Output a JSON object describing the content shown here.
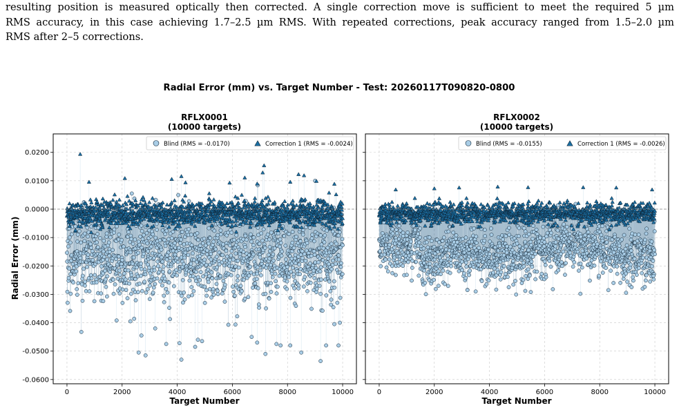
{
  "paragraph": {
    "lines": [
      "resulting position is measured optically then corrected.  A single correction move is sufficient to meet the required 5 µm",
      "RMS accuracy, in this case achieving 1.7–2.5 µm RMS. With repeated corrections, peak accuracy ranged from 1.5–2.0 µm",
      "RMS after 2–5 corrections."
    ]
  },
  "figure": {
    "suptitle": "Radial Error (mm) vs. Target Number - Test: 20260117T090820-0800"
  },
  "colors": {
    "blind_fill": "#a9cde6",
    "correction_fill": "#1b6fa3",
    "edge": "#0d2233",
    "zero_line": "#888888",
    "grid": "#c8c8c8"
  },
  "chart_data": [
    {
      "type": "scatter",
      "title": "RFLX0001",
      "subtitle": "(10000 targets)",
      "xlabel": "Target Number",
      "ylabel": "Radial Error (mm)",
      "xlim": [
        -500,
        10500
      ],
      "ylim": [
        -0.0615,
        0.0265
      ],
      "xticks": [
        0,
        2000,
        4000,
        6000,
        8000,
        10000
      ],
      "yticks": [
        0.02,
        0.01,
        0.0,
        -0.01,
        -0.02,
        -0.03,
        -0.04,
        -0.05,
        -0.06
      ],
      "ytick_labels": [
        "0.0200",
        "0.0100",
        "0.0000",
        "-0.0100",
        "-0.0200",
        "-0.0300",
        "-0.0400",
        "-0.0500",
        "-0.0600"
      ],
      "grid": true,
      "legend_position": "top-right",
      "n_targets": 10000,
      "series": [
        {
          "name": "Blind (RMS = -0.0170)",
          "marker": "circle",
          "distribution": {
            "mean": -0.017,
            "spread": 0.0075
          },
          "notable_points": [
            [
              2600,
              -0.0505
            ],
            [
              2850,
              -0.0515
            ],
            [
              4150,
              -0.053
            ],
            [
              4650,
              -0.0485
            ],
            [
              4750,
              -0.046
            ],
            [
              4900,
              -0.0465
            ],
            [
              3600,
              -0.0475
            ],
            [
              4080,
              -0.0472
            ],
            [
              6700,
              -0.045
            ],
            [
              6900,
              -0.047
            ],
            [
              7200,
              -0.051
            ],
            [
              7600,
              -0.0475
            ],
            [
              7750,
              -0.048
            ],
            [
              8100,
              -0.048
            ],
            [
              8500,
              -0.0505
            ],
            [
              9200,
              -0.0535
            ],
            [
              9400,
              -0.048
            ],
            [
              9850,
              -0.048
            ],
            [
              1800,
              -0.0392
            ],
            [
              2300,
              -0.0395
            ],
            [
              2700,
              -0.0445
            ],
            [
              3200,
              -0.042
            ],
            [
              9700,
              -0.0405
            ],
            [
              9900,
              -0.04
            ]
          ]
        },
        {
          "name": "Correction 1 (RMS = -0.0024)",
          "marker": "triangle",
          "distribution": {
            "mean": -0.0015,
            "spread": 0.0022
          },
          "notable_points": [
            [
              480,
              0.0193
            ],
            [
              4150,
              0.0115
            ],
            [
              7150,
              0.0153
            ],
            [
              7100,
              0.0128
            ],
            [
              6450,
              0.011
            ],
            [
              8400,
              0.0122
            ],
            [
              8600,
              0.0118
            ],
            [
              9050,
              0.0098
            ],
            [
              800,
              0.0095
            ],
            [
              2100,
              0.0108
            ],
            [
              3800,
              0.0105
            ],
            [
              5900,
              0.0092
            ],
            [
              4300,
              0.0093
            ],
            [
              6900,
              0.0089
            ],
            [
              9700,
              0.0088
            ],
            [
              8100,
              0.0095
            ]
          ]
        }
      ]
    },
    {
      "type": "scatter",
      "title": "RFLX0002",
      "subtitle": "(10000 targets)",
      "xlabel": "Target Number",
      "ylabel": "",
      "xlim": [
        -500,
        10500
      ],
      "ylim": [
        -0.0615,
        0.0265
      ],
      "xticks": [
        0,
        2000,
        4000,
        6000,
        8000,
        10000
      ],
      "yticks": [
        0.02,
        0.01,
        0.0,
        -0.01,
        -0.02,
        -0.03,
        -0.04,
        -0.05,
        -0.06
      ],
      "grid": true,
      "legend_position": "top-right",
      "n_targets": 10000,
      "series": [
        {
          "name": "Blind (RMS = -0.0155)",
          "marker": "circle",
          "distribution": {
            "mean": -0.0148,
            "spread": 0.0045
          },
          "notable_points": [
            [
              7300,
              -0.0298
            ],
            [
              5300,
              -0.0288
            ],
            [
              3500,
              -0.029
            ],
            [
              5500,
              -0.0292
            ],
            [
              3200,
              -0.0285
            ],
            [
              6300,
              -0.0282
            ],
            [
              4700,
              -0.0275
            ],
            [
              9200,
              -0.024
            ],
            [
              600,
              -0.0232
            ],
            [
              9950,
              -0.0235
            ],
            [
              2150,
              -0.027
            ],
            [
              8500,
              -0.026
            ]
          ]
        },
        {
          "name": "Correction 1 (RMS = -0.0026)",
          "marker": "triangle",
          "distribution": {
            "mean": -0.0015,
            "spread": 0.0018
          },
          "notable_points": [
            [
              4300,
              0.0078
            ],
            [
              2900,
              0.0075
            ],
            [
              5400,
              0.0076
            ],
            [
              7400,
              0.0076
            ],
            [
              8600,
              0.0075
            ],
            [
              600,
              0.0068
            ],
            [
              9900,
              0.0068
            ],
            [
              2000,
              0.0072
            ]
          ]
        }
      ]
    }
  ]
}
